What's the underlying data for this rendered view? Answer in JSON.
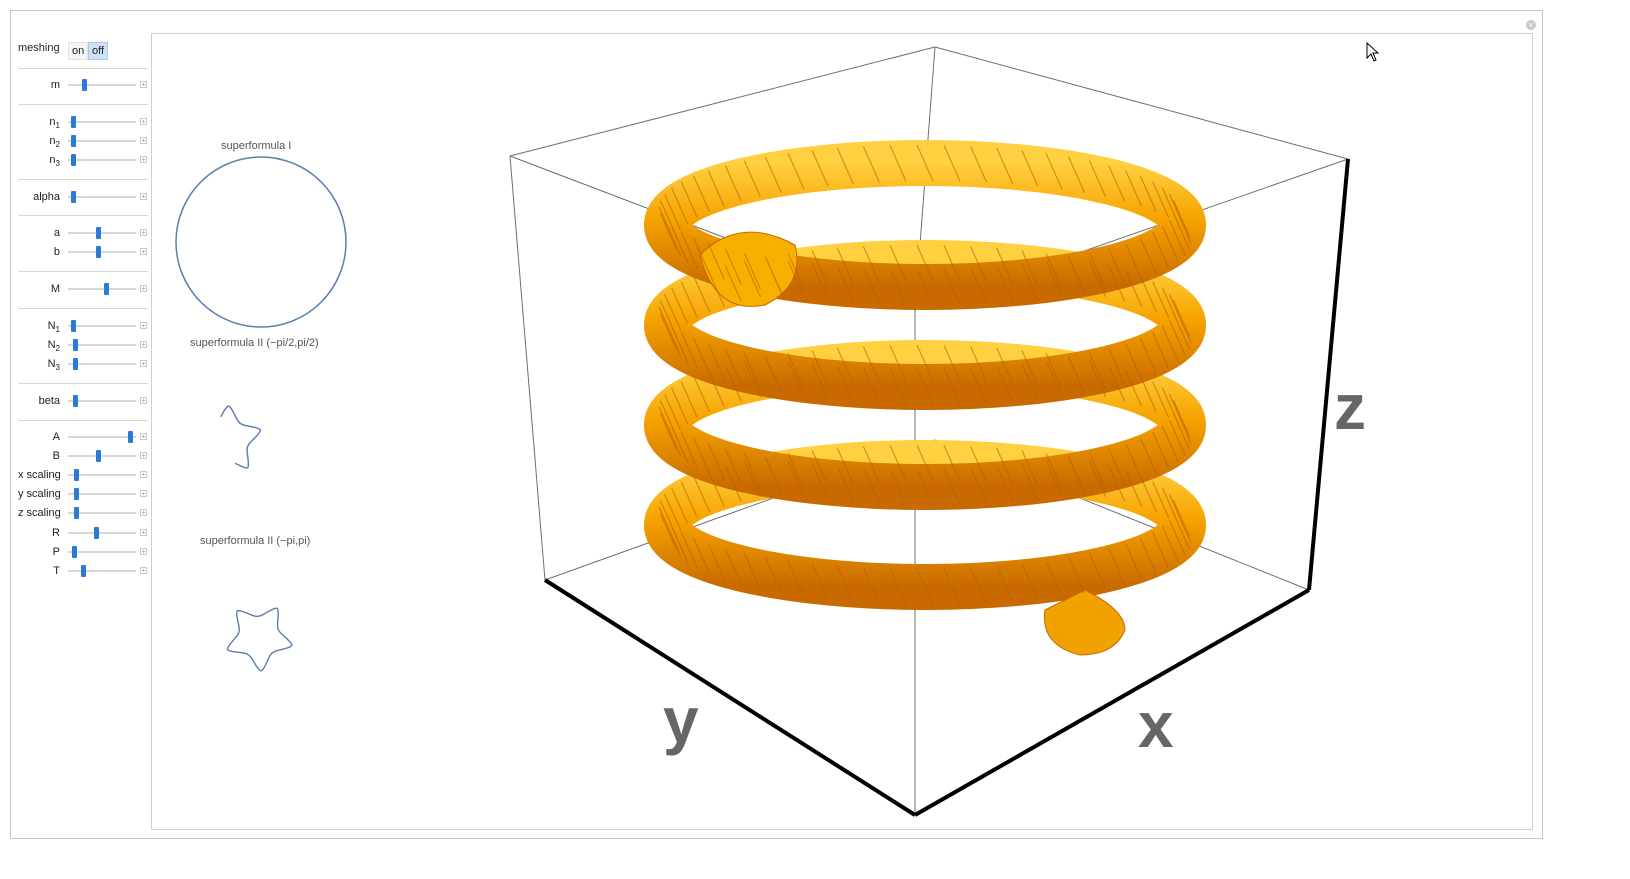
{
  "controls": {
    "meshing": {
      "label": "meshing",
      "options": [
        "on",
        "off"
      ],
      "selected": "off"
    },
    "sliders": [
      {
        "label": "m",
        "sub": "",
        "value": 0.22
      },
      {
        "label": "n",
        "sub": "1",
        "value": 0.05
      },
      {
        "label": "n",
        "sub": "2",
        "value": 0.05
      },
      {
        "label": "n",
        "sub": "3",
        "value": 0.05
      },
      {
        "label": "alpha",
        "sub": "",
        "value": 0.04
      },
      {
        "label": "a",
        "sub": "",
        "value": 0.45
      },
      {
        "label": "b",
        "sub": "",
        "value": 0.44
      },
      {
        "label": "M",
        "sub": "",
        "value": 0.57
      },
      {
        "label": "N",
        "sub": "1",
        "value": 0.05
      },
      {
        "label": "N",
        "sub": "2",
        "value": 0.08
      },
      {
        "label": "N",
        "sub": "3",
        "value": 0.08
      },
      {
        "label": "beta",
        "sub": "",
        "value": 0.08
      },
      {
        "label": "A",
        "sub": "",
        "value": 0.95
      },
      {
        "label": "B",
        "sub": "",
        "value": 0.44
      },
      {
        "label": "x scaling",
        "sub": "",
        "value": 0.1
      },
      {
        "label": "y scaling",
        "sub": "",
        "value": 0.1
      },
      {
        "label": "z scaling",
        "sub": "",
        "value": 0.1
      },
      {
        "label": "R",
        "sub": "",
        "value": 0.42
      },
      {
        "label": "P",
        "sub": "",
        "value": 0.06
      },
      {
        "label": "T",
        "sub": "",
        "value": 0.21
      }
    ]
  },
  "plots": {
    "plot1_title": "superformula I",
    "plot2_title": "superformula II (−pi/2,pi/2)",
    "plot3_title": "superformula II (−pi,pi)"
  },
  "axes": {
    "x": "x",
    "y": "y",
    "z": "z"
  },
  "colors": {
    "curve": "#5b7fae",
    "surface": "#f6a400",
    "surface_shade": "#c86a00",
    "slider_thumb": "#2a7bd6"
  }
}
